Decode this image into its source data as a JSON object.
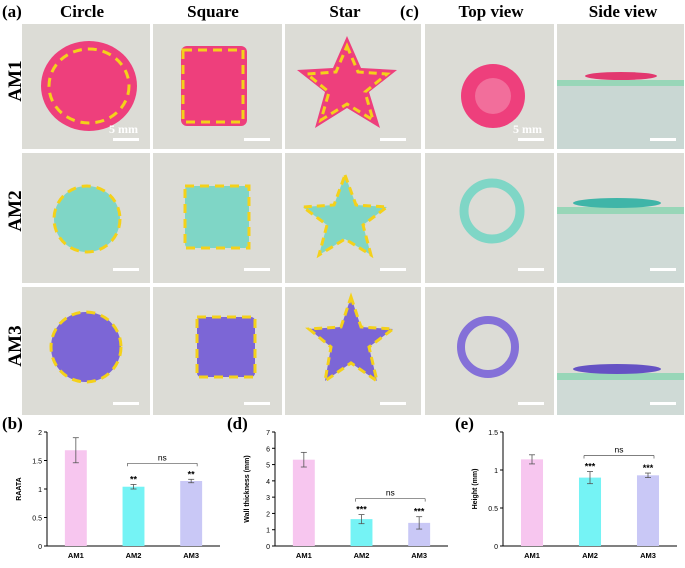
{
  "panels": {
    "a": "(a)",
    "c": "(c)",
    "b": "(b)",
    "d": "(d)",
    "e": "(e)"
  },
  "columns_a": [
    "Circle",
    "Square",
    "Star"
  ],
  "columns_c": [
    "Top view",
    "Side view"
  ],
  "rows": [
    "AM1",
    "AM2",
    "AM3"
  ],
  "scale_label": "5 mm",
  "colors": {
    "AM1": "#ee3f7c",
    "AM2": "#7fd6c6",
    "AM3": "#7c66d6",
    "outline": "#f4d11a",
    "bar_AM1": "#f7c6ef",
    "bar_AM2": "#75f3f5",
    "bar_AM3": "#c9c8f6"
  },
  "chart_data": [
    {
      "type": "bar",
      "categories": [
        "AM1",
        "AM2",
        "AM3"
      ],
      "values": [
        1.68,
        1.04,
        1.14
      ],
      "errors": [
        0.22,
        0.04,
        0.03
      ],
      "significance": [
        "",
        "**",
        "**"
      ],
      "bracket": {
        "from": "AM2",
        "to": "AM3",
        "label": "ns"
      },
      "ylabel": "RAATA",
      "ylim": [
        0,
        2
      ],
      "yticks": [
        0,
        0.5,
        1,
        1.5,
        2
      ]
    },
    {
      "type": "bar",
      "categories": [
        "AM1",
        "AM2",
        "AM3"
      ],
      "values": [
        5.3,
        1.65,
        1.42
      ],
      "errors": [
        0.45,
        0.28,
        0.38
      ],
      "significance": [
        "",
        "***",
        "***"
      ],
      "bracket": {
        "from": "AM2",
        "to": "AM3",
        "label": "ns"
      },
      "ylabel": "Wall thickness (mm)",
      "ylim": [
        0,
        7
      ],
      "yticks": [
        0,
        1,
        2,
        3,
        4,
        5,
        6,
        7
      ]
    },
    {
      "type": "bar",
      "categories": [
        "AM1",
        "AM2",
        "AM3"
      ],
      "values": [
        1.14,
        0.9,
        0.93
      ],
      "errors": [
        0.06,
        0.08,
        0.03
      ],
      "significance": [
        "",
        "***",
        "***"
      ],
      "bracket": {
        "from": "AM2",
        "to": "AM3",
        "label": "ns"
      },
      "ylabel": "Height (mm)",
      "ylim": [
        0,
        1.5
      ],
      "yticks": [
        0,
        0.5,
        1,
        1.5
      ]
    }
  ]
}
